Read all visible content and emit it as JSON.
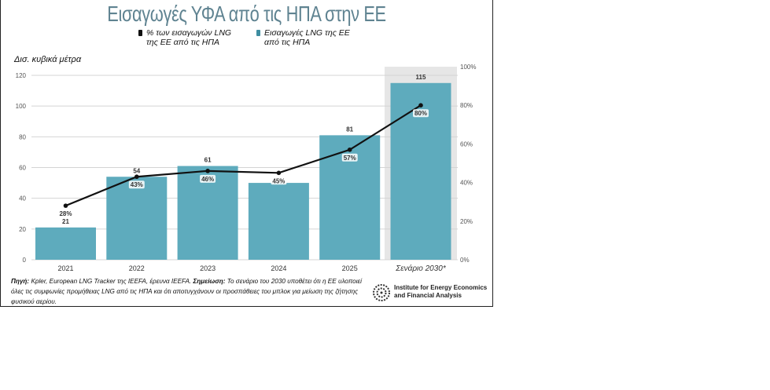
{
  "chart_data": {
    "type": "bar+line",
    "title": "Εισαγωγές ΥΦΑ από τις ΗΠΑ στην ΕΕ",
    "ylabel": "Δισ. κυβικά μέτρα",
    "categories": [
      "2021",
      "2022",
      "2023",
      "2024",
      "2025",
      "Σενάριο 2030*"
    ],
    "series": [
      {
        "name": "Εισαγωγές LNG της ΕΕ από τις ΗΠΑ",
        "type": "bar",
        "axis": "left",
        "color": "#5eabbd",
        "values": [
          21,
          54,
          61,
          50,
          81,
          115
        ],
        "labels": [
          "21",
          "54",
          "61",
          "",
          "81",
          "115"
        ]
      },
      {
        "name": "% των εισαγωγών LNG της ΕΕ από τις ΗΠΑ",
        "type": "line",
        "axis": "right",
        "color": "#111111",
        "values": [
          28,
          43,
          46,
          45,
          57,
          80
        ],
        "labels": [
          "28%",
          "43%",
          "46%",
          "45%",
          "57%",
          "80%"
        ]
      }
    ],
    "ylim": [
      0,
      120
    ],
    "yticks": [
      "0",
      "20",
      "40",
      "60",
      "80",
      "100",
      "120"
    ],
    "y2lim": [
      0,
      100
    ],
    "y2ticks": [
      "0%",
      "20%",
      "40%",
      "60%",
      "80%",
      "100%"
    ],
    "highlight_category": "Σενάριο 2030*",
    "grid": true,
    "legend": {
      "placement": "top",
      "items": [
        "% των εισαγωγών LNG της ΕΕ από τις ΗΠΑ",
        "Εισαγωγές LNG της ΕΕ από τις ΗΠΑ"
      ]
    }
  },
  "legend": {
    "line_l1": "% των εισαγωγών LNG",
    "line_l2": "της ΕΕ από τις ΗΠΑ",
    "bar_l1": "Εισαγωγές LNG της ΕΕ",
    "bar_l2": "από τις ΗΠΑ"
  },
  "footer": {
    "source_label": "Πηγή:",
    "source": " Kpler, European LNG Tracker της IEEFA, έρευνα IEEFA. ",
    "note_label": "Σημείωση:",
    "note": " Το σενάριο του 2030 υποθέτει ότι η ΕΕ υλοποιεί όλες τις συμφωνίες προμήθειας LNG από τις ΗΠΑ και ότι αποτυγχάνουν οι προσπάθειες του μπλοκ για μείωση της ζήτησης φυσικού αερίου."
  },
  "logo": {
    "line1": "Institute for Energy Economics",
    "line2": "and Financial Analysis"
  }
}
